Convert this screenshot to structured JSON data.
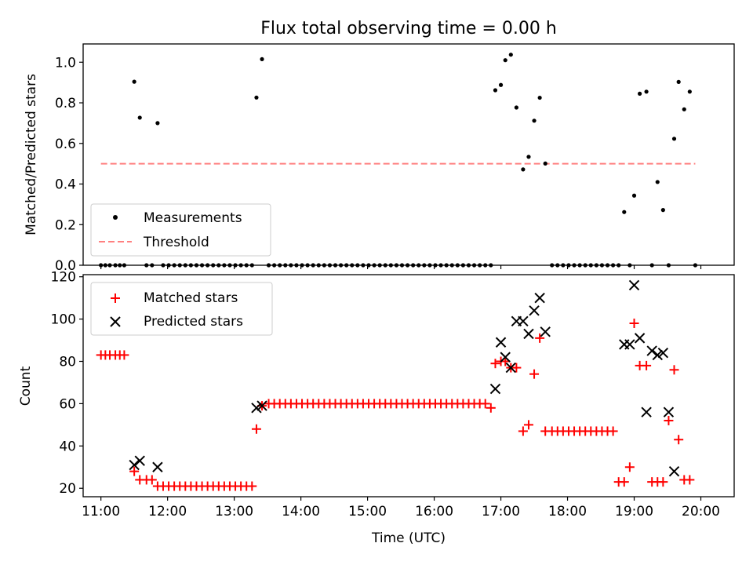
{
  "figure": {
    "title": "Flux total observing time = 0.00 h"
  },
  "chart_data": [
    {
      "type": "scatter",
      "panel": "top",
      "title": "Flux total observing time = 0.00 h",
      "xlabel": "",
      "ylabel": "Matched/Predicted stars",
      "xlim": [
        "10:44",
        "20:30"
      ],
      "ylim": [
        0,
        1.09
      ],
      "yticks": [
        "0.0",
        "0.2",
        "0.4",
        "0.6",
        "0.8",
        "1.0"
      ],
      "legend_position": "lower-left",
      "series": [
        {
          "name": "Measurements",
          "marker": "dot",
          "color": "#000000",
          "points": [
            [
              "11:00",
              0
            ],
            [
              "11:04",
              0
            ],
            [
              "11:08",
              0
            ],
            [
              "11:13",
              0
            ],
            [
              "11:17",
              0
            ],
            [
              "11:21",
              0
            ],
            [
              "11:30",
              0.904
            ],
            [
              "11:35",
              0.727
            ],
            [
              "11:41",
              0
            ],
            [
              "11:46",
              0
            ],
            [
              "11:51",
              0.7
            ],
            [
              "11:56",
              0
            ],
            [
              "12:01",
              0
            ],
            [
              "12:06",
              0
            ],
            [
              "12:11",
              0
            ],
            [
              "12:16",
              0
            ],
            [
              "12:21",
              0
            ],
            [
              "12:26",
              0
            ],
            [
              "12:31",
              0
            ],
            [
              "12:36",
              0
            ],
            [
              "12:41",
              0
            ],
            [
              "12:46",
              0
            ],
            [
              "12:51",
              0
            ],
            [
              "12:56",
              0
            ],
            [
              "13:01",
              0
            ],
            [
              "13:06",
              0
            ],
            [
              "13:11",
              0
            ],
            [
              "13:16",
              0
            ],
            [
              "13:20",
              0.826
            ],
            [
              "13:25",
              1.015
            ],
            [
              "13:31",
              0
            ],
            [
              "13:36",
              0
            ],
            [
              "13:41",
              0
            ],
            [
              "13:46",
              0
            ],
            [
              "13:51",
              0
            ],
            [
              "13:56",
              0
            ],
            [
              "14:01",
              0
            ],
            [
              "14:06",
              0
            ],
            [
              "14:11",
              0
            ],
            [
              "14:16",
              0
            ],
            [
              "14:21",
              0
            ],
            [
              "14:26",
              0
            ],
            [
              "14:31",
              0
            ],
            [
              "14:36",
              0
            ],
            [
              "14:41",
              0
            ],
            [
              "14:46",
              0
            ],
            [
              "14:51",
              0
            ],
            [
              "14:56",
              0
            ],
            [
              "15:01",
              0
            ],
            [
              "15:06",
              0
            ],
            [
              "15:11",
              0
            ],
            [
              "15:16",
              0
            ],
            [
              "15:21",
              0
            ],
            [
              "15:26",
              0
            ],
            [
              "15:31",
              0
            ],
            [
              "15:36",
              0
            ],
            [
              "15:41",
              0
            ],
            [
              "15:46",
              0
            ],
            [
              "15:51",
              0
            ],
            [
              "15:56",
              0
            ],
            [
              "16:01",
              0
            ],
            [
              "16:06",
              0
            ],
            [
              "16:11",
              0
            ],
            [
              "16:16",
              0
            ],
            [
              "16:21",
              0
            ],
            [
              "16:26",
              0
            ],
            [
              "16:31",
              0
            ],
            [
              "16:36",
              0
            ],
            [
              "16:41",
              0
            ],
            [
              "16:46",
              0
            ],
            [
              "16:51",
              0
            ],
            [
              "16:55",
              0.862
            ],
            [
              "17:00",
              0.888
            ],
            [
              "17:04",
              1.01
            ],
            [
              "17:09",
              1.037
            ],
            [
              "17:14",
              0.777
            ],
            [
              "17:20",
              0.472
            ],
            [
              "17:25",
              0.534
            ],
            [
              "17:30",
              0.712
            ],
            [
              "17:35",
              0.825
            ],
            [
              "17:40",
              0.501
            ],
            [
              "17:46",
              0
            ],
            [
              "17:51",
              0
            ],
            [
              "17:56",
              0
            ],
            [
              "18:01",
              0
            ],
            [
              "18:06",
              0
            ],
            [
              "18:11",
              0
            ],
            [
              "18:16",
              0
            ],
            [
              "18:21",
              0
            ],
            [
              "18:26",
              0
            ],
            [
              "18:31",
              0
            ],
            [
              "18:36",
              0
            ],
            [
              "18:41",
              0
            ],
            [
              "18:46",
              0
            ],
            [
              "18:51",
              0.262
            ],
            [
              "18:56",
              0
            ],
            [
              "19:00",
              0.343
            ],
            [
              "19:05",
              0.845
            ],
            [
              "19:11",
              0.855
            ],
            [
              "19:16",
              0
            ],
            [
              "19:21",
              0.41
            ],
            [
              "19:26",
              0.272
            ],
            [
              "19:31",
              0
            ],
            [
              "19:36",
              0.623
            ],
            [
              "19:40",
              0.903
            ],
            [
              "19:45",
              0.768
            ],
            [
              "19:50",
              0.855
            ],
            [
              "19:55",
              0
            ]
          ]
        },
        {
          "name": "Threshold",
          "style": "dashed-line",
          "color": "#ff8080",
          "points": [
            [
              "11:00",
              0.5
            ],
            [
              "19:55",
              0.5
            ]
          ]
        }
      ]
    },
    {
      "type": "scatter",
      "panel": "bottom",
      "xlabel": "Time (UTC)",
      "ylabel": "Count",
      "xlim": [
        "10:44",
        "20:30"
      ],
      "ylim": [
        16,
        121
      ],
      "xticks": [
        "11:00",
        "12:00",
        "13:00",
        "14:00",
        "15:00",
        "16:00",
        "17:00",
        "18:00",
        "19:00",
        "20:00"
      ],
      "yticks": [
        "20",
        "40",
        "60",
        "80",
        "100",
        "120"
      ],
      "legend_position": "upper-left",
      "series": [
        {
          "name": "Matched stars",
          "marker": "plus",
          "color": "#ff0000",
          "points": [
            [
              "11:00",
              83
            ],
            [
              "11:04",
              83
            ],
            [
              "11:08",
              83
            ],
            [
              "11:13",
              83
            ],
            [
              "11:17",
              83
            ],
            [
              "11:21",
              83
            ],
            [
              "11:30",
              28
            ],
            [
              "11:35",
              24
            ],
            [
              "11:41",
              24
            ],
            [
              "11:46",
              24
            ],
            [
              "11:51",
              21
            ],
            [
              "11:56",
              21
            ],
            [
              "12:01",
              21
            ],
            [
              "12:06",
              21
            ],
            [
              "12:11",
              21
            ],
            [
              "12:16",
              21
            ],
            [
              "12:21",
              21
            ],
            [
              "12:26",
              21
            ],
            [
              "12:31",
              21
            ],
            [
              "12:36",
              21
            ],
            [
              "12:41",
              21
            ],
            [
              "12:46",
              21
            ],
            [
              "12:51",
              21
            ],
            [
              "12:56",
              21
            ],
            [
              "13:01",
              21
            ],
            [
              "13:06",
              21
            ],
            [
              "13:11",
              21
            ],
            [
              "13:16",
              21
            ],
            [
              "13:20",
              48
            ],
            [
              "13:25",
              59
            ],
            [
              "13:31",
              60
            ],
            [
              "13:36",
              60
            ],
            [
              "13:41",
              60
            ],
            [
              "13:46",
              60
            ],
            [
              "13:51",
              60
            ],
            [
              "13:56",
              60
            ],
            [
              "14:01",
              60
            ],
            [
              "14:06",
              60
            ],
            [
              "14:11",
              60
            ],
            [
              "14:16",
              60
            ],
            [
              "14:21",
              60
            ],
            [
              "14:26",
              60
            ],
            [
              "14:31",
              60
            ],
            [
              "14:36",
              60
            ],
            [
              "14:41",
              60
            ],
            [
              "14:46",
              60
            ],
            [
              "14:51",
              60
            ],
            [
              "14:56",
              60
            ],
            [
              "15:01",
              60
            ],
            [
              "15:06",
              60
            ],
            [
              "15:11",
              60
            ],
            [
              "15:16",
              60
            ],
            [
              "15:21",
              60
            ],
            [
              "15:26",
              60
            ],
            [
              "15:31",
              60
            ],
            [
              "15:36",
              60
            ],
            [
              "15:41",
              60
            ],
            [
              "15:46",
              60
            ],
            [
              "15:51",
              60
            ],
            [
              "15:56",
              60
            ],
            [
              "16:01",
              60
            ],
            [
              "16:06",
              60
            ],
            [
              "16:11",
              60
            ],
            [
              "16:16",
              60
            ],
            [
              "16:21",
              60
            ],
            [
              "16:26",
              60
            ],
            [
              "16:31",
              60
            ],
            [
              "16:36",
              60
            ],
            [
              "16:41",
              60
            ],
            [
              "16:46",
              60
            ],
            [
              "16:51",
              58
            ],
            [
              "16:55",
              79
            ],
            [
              "17:00",
              80
            ],
            [
              "17:04",
              80
            ],
            [
              "17:09",
              77
            ],
            [
              "17:14",
              77
            ],
            [
              "17:20",
              47
            ],
            [
              "17:25",
              50
            ],
            [
              "17:30",
              74
            ],
            [
              "17:35",
              91
            ],
            [
              "17:40",
              47
            ],
            [
              "17:46",
              47
            ],
            [
              "17:51",
              47
            ],
            [
              "17:56",
              47
            ],
            [
              "18:01",
              47
            ],
            [
              "18:06",
              47
            ],
            [
              "18:11",
              47
            ],
            [
              "18:16",
              47
            ],
            [
              "18:21",
              47
            ],
            [
              "18:26",
              47
            ],
            [
              "18:31",
              47
            ],
            [
              "18:36",
              47
            ],
            [
              "18:41",
              47
            ],
            [
              "18:46",
              23
            ],
            [
              "18:51",
              23
            ],
            [
              "18:56",
              30
            ],
            [
              "19:00",
              98
            ],
            [
              "19:05",
              78
            ],
            [
              "19:11",
              78
            ],
            [
              "19:16",
              23
            ],
            [
              "19:21",
              23
            ],
            [
              "19:26",
              23
            ],
            [
              "19:31",
              52
            ],
            [
              "19:36",
              76
            ],
            [
              "19:40",
              43
            ],
            [
              "19:45",
              24
            ],
            [
              "19:50",
              24
            ]
          ]
        },
        {
          "name": "Predicted stars",
          "marker": "cross",
          "color": "#000000",
          "points": [
            [
              "11:30",
              31
            ],
            [
              "11:35",
              33
            ],
            [
              "11:51",
              30
            ],
            [
              "13:20",
              58
            ],
            [
              "13:25",
              59
            ],
            [
              "16:55",
              67
            ],
            [
              "17:00",
              89
            ],
            [
              "17:04",
              82
            ],
            [
              "17:09",
              77
            ],
            [
              "17:14",
              99
            ],
            [
              "17:20",
              99
            ],
            [
              "17:25",
              93
            ],
            [
              "17:30",
              104
            ],
            [
              "17:35",
              110
            ],
            [
              "17:40",
              94
            ],
            [
              "18:51",
              88
            ],
            [
              "18:56",
              88
            ],
            [
              "19:00",
              116
            ],
            [
              "19:05",
              91
            ],
            [
              "19:11",
              56
            ],
            [
              "19:16",
              85
            ],
            [
              "19:21",
              83
            ],
            [
              "19:26",
              84
            ],
            [
              "19:31",
              56
            ],
            [
              "19:36",
              28
            ]
          ]
        }
      ]
    }
  ]
}
